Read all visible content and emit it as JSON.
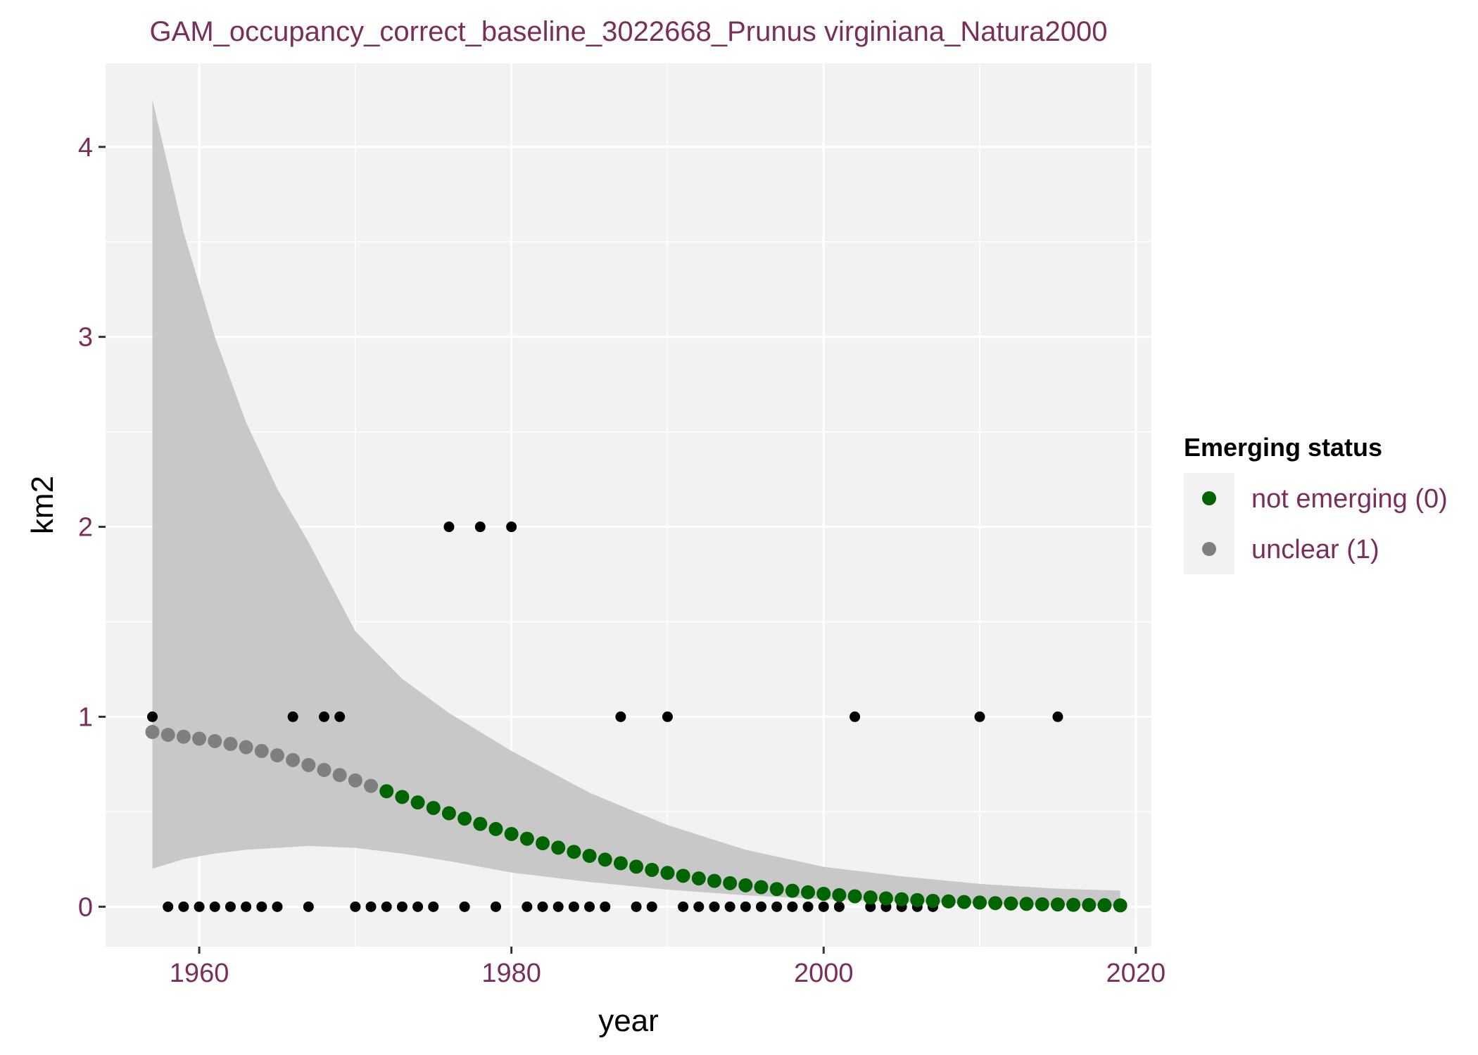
{
  "chart_data": {
    "type": "scatter",
    "title": "GAM_occupancy_correct_baseline_3022668_Prunus virginiana_Natura2000",
    "xlabel": "year",
    "ylabel": "km2",
    "xlim": [
      1954,
      2021
    ],
    "ylim": [
      -0.21,
      4.44
    ],
    "x_ticks": [
      1960,
      1980,
      2000,
      2020
    ],
    "y_ticks": [
      0,
      1,
      2,
      3,
      4
    ],
    "grid": true,
    "background": "#f2f2f2",
    "legend": {
      "title": "Emerging status",
      "position": "right",
      "entries": [
        {
          "label": "not emerging (0)",
          "color": "#006400"
        },
        {
          "label": "unclear (1)",
          "color": "#7f7f7f"
        }
      ]
    },
    "observed": {
      "color": "#000000",
      "x": [
        1957,
        1958,
        1959,
        1960,
        1961,
        1962,
        1963,
        1964,
        1965,
        1966,
        1967,
        1968,
        1969,
        1970,
        1971,
        1972,
        1973,
        1974,
        1975,
        1976,
        1977,
        1978,
        1979,
        1980,
        1981,
        1982,
        1983,
        1984,
        1985,
        1986,
        1987,
        1988,
        1989,
        1990,
        1991,
        1992,
        1993,
        1994,
        1995,
        1996,
        1997,
        1998,
        1999,
        2000,
        2001,
        2002,
        2003,
        2004,
        2005,
        2006,
        2007,
        2010,
        2015
      ],
      "y": [
        1,
        0,
        0,
        0,
        0,
        0,
        0,
        0,
        0,
        1,
        0,
        1,
        1,
        0,
        0,
        0,
        0,
        0,
        0,
        2,
        0,
        2,
        0,
        2,
        0,
        0,
        0,
        0,
        0,
        0,
        1,
        0,
        0,
        1,
        0,
        0,
        0,
        0,
        0,
        0,
        0,
        0,
        0,
        0,
        0,
        1,
        0,
        0,
        0,
        0,
        0,
        1,
        1
      ]
    },
    "fit": {
      "x_start": 1957,
      "x_end": 2019,
      "y": [
        0.92,
        0.905,
        0.895,
        0.885,
        0.872,
        0.857,
        0.84,
        0.82,
        0.797,
        0.772,
        0.746,
        0.72,
        0.693,
        0.665,
        0.636,
        0.608,
        0.578,
        0.549,
        0.52,
        0.492,
        0.464,
        0.436,
        0.409,
        0.383,
        0.358,
        0.334,
        0.311,
        0.289,
        0.268,
        0.248,
        0.229,
        0.211,
        0.194,
        0.178,
        0.163,
        0.149,
        0.136,
        0.124,
        0.113,
        0.103,
        0.093,
        0.084,
        0.076,
        0.068,
        0.061,
        0.055,
        0.049,
        0.044,
        0.039,
        0.035,
        0.031,
        0.028,
        0.025,
        0.022,
        0.019,
        0.017,
        0.015,
        0.013,
        0.012,
        0.01,
        0.009,
        0.008,
        0.007
      ],
      "status": [
        "unclear (1)",
        "unclear (1)",
        "unclear (1)",
        "unclear (1)",
        "unclear (1)",
        "unclear (1)",
        "unclear (1)",
        "unclear (1)",
        "unclear (1)",
        "unclear (1)",
        "unclear (1)",
        "unclear (1)",
        "unclear (1)",
        "unclear (1)",
        "unclear (1)",
        "not emerging (0)",
        "not emerging (0)",
        "not emerging (0)",
        "not emerging (0)",
        "not emerging (0)",
        "not emerging (0)",
        "not emerging (0)",
        "not emerging (0)",
        "not emerging (0)",
        "not emerging (0)",
        "not emerging (0)",
        "not emerging (0)",
        "not emerging (0)",
        "not emerging (0)",
        "not emerging (0)",
        "not emerging (0)",
        "not emerging (0)",
        "not emerging (0)",
        "not emerging (0)",
        "not emerging (0)",
        "not emerging (0)",
        "not emerging (0)",
        "not emerging (0)",
        "not emerging (0)",
        "not emerging (0)",
        "not emerging (0)",
        "not emerging (0)",
        "not emerging (0)",
        "not emerging (0)",
        "not emerging (0)",
        "not emerging (0)",
        "not emerging (0)",
        "not emerging (0)",
        "not emerging (0)",
        "not emerging (0)",
        "not emerging (0)",
        "not emerging (0)",
        "not emerging (0)",
        "not emerging (0)",
        "not emerging (0)",
        "not emerging (0)",
        "not emerging (0)",
        "not emerging (0)",
        "not emerging (0)",
        "not emerging (0)",
        "not emerging (0)",
        "not emerging (0)",
        "not emerging (0)"
      ]
    },
    "confidence_band": {
      "color": "#c8c8c8",
      "x": [
        1957,
        1959,
        1961,
        1963,
        1965,
        1967,
        1970,
        1973,
        1976,
        1980,
        1985,
        1990,
        1995,
        2000,
        2005,
        2010,
        2015,
        2019
      ],
      "lower": [
        0.2,
        0.25,
        0.28,
        0.3,
        0.31,
        0.32,
        0.31,
        0.28,
        0.24,
        0.18,
        0.13,
        0.09,
        0.06,
        0.04,
        0.025,
        0.015,
        0.008,
        0.004
      ],
      "upper": [
        4.25,
        3.55,
        3.0,
        2.55,
        2.2,
        1.92,
        1.45,
        1.2,
        1.02,
        0.82,
        0.6,
        0.43,
        0.3,
        0.21,
        0.16,
        0.12,
        0.095,
        0.085
      ]
    }
  }
}
